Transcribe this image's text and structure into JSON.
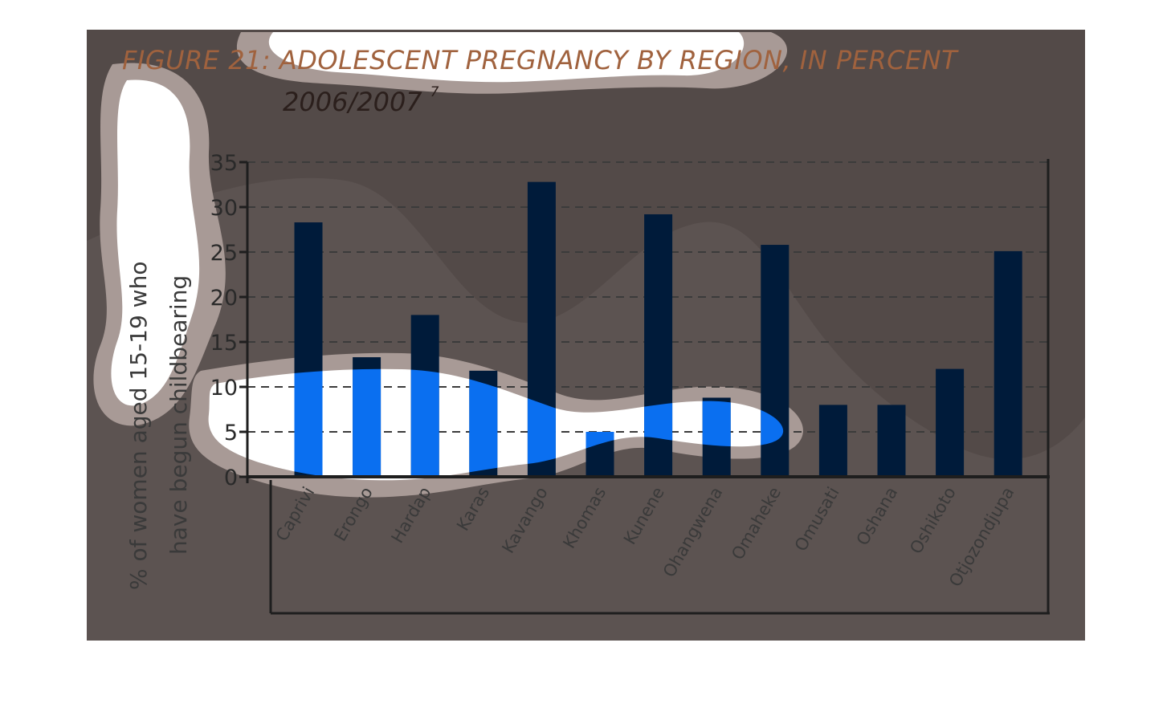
{
  "colors": {
    "panel": "#534a48",
    "panel_light": "#5c5351",
    "blob_outer": "#a89a96",
    "blob_inner": "#ffffff",
    "bar_dark": "#001b3a",
    "bar_bright": "#0a6ff0",
    "axis": "#1e1e1e",
    "gridline": "#3b3b3b"
  },
  "chart_data": {
    "type": "bar",
    "title": "FIGURE 21: ADOLESCENT PREGNANCY BY REGION, IN PERCENT",
    "subtitle": "2006/2007",
    "subtitle_superscript": "7",
    "ylabel_lines": [
      "% of women aged 15-19 who",
      "have begun childbearing"
    ],
    "xlabel": "",
    "ylim": [
      0,
      35
    ],
    "yticks": [
      "0",
      "5",
      "10",
      "15",
      "20",
      "25",
      "30",
      "35"
    ],
    "grid": true,
    "categories": [
      "Caprivi",
      "Erongo",
      "Hardap",
      "Karas",
      "Kavango",
      "Khomas",
      "Kunene",
      "Ohangwena",
      "Omaheke",
      "Omusati",
      "Oshana",
      "Oshikoto",
      "Otjozondjupa"
    ],
    "values": [
      28.3,
      13.3,
      18.0,
      11.8,
      32.8,
      5.0,
      29.2,
      8.8,
      25.8,
      8.0,
      8.0,
      12.0,
      25.1
    ]
  }
}
